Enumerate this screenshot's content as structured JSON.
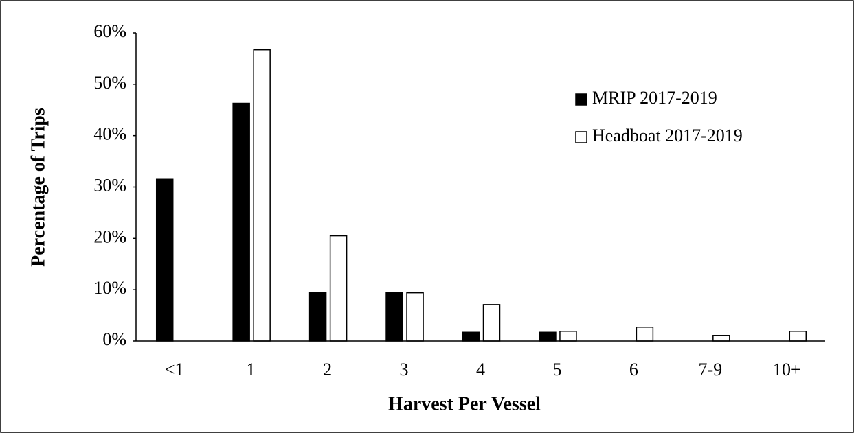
{
  "chart_data": {
    "type": "bar",
    "x_label": "Harvest Per Vessel",
    "y_label": "Percentage of Trips",
    "categories": [
      "<1",
      "1",
      "2",
      "3",
      "4",
      "5",
      "6",
      "7-9",
      "10+"
    ],
    "series": [
      {
        "name": "MRIP 2017-2019",
        "color": "#000000",
        "values": [
          31.5,
          46.3,
          9.4,
          9.4,
          1.7,
          1.7,
          0,
          0,
          0
        ]
      },
      {
        "name": "Headboat 2017-2019",
        "color": "#ffffff",
        "values": [
          0,
          56.7,
          20.5,
          9.4,
          7.1,
          1.9,
          2.7,
          1.1,
          1.9
        ]
      }
    ],
    "ylim": [
      0,
      60
    ],
    "yticks": [
      {
        "value": 0,
        "label": "0%"
      },
      {
        "value": 10,
        "label": "10%"
      },
      {
        "value": 20,
        "label": "20%"
      },
      {
        "value": 30,
        "label": "30%"
      },
      {
        "value": 40,
        "label": "40%"
      },
      {
        "value": 50,
        "label": "50%"
      },
      {
        "value": 60,
        "label": "60%"
      }
    ],
    "legend": "upper right",
    "grid": false
  }
}
